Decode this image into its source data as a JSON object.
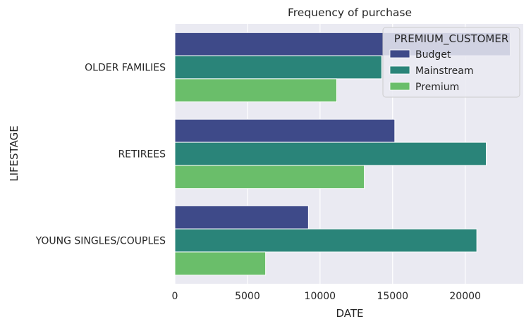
{
  "chart_data": {
    "type": "bar",
    "orientation": "horizontal",
    "title": "Frequency of purchase",
    "xlabel": "DATE",
    "ylabel": "LIFESTAGE",
    "categories": [
      "OLDER FAMILIES",
      "RETIREES",
      "YOUNG SINGLES/COUPLES"
    ],
    "series": [
      {
        "name": "Budget",
        "color": "#3e4a89",
        "values": [
          23100,
          15150,
          9200
        ]
      },
      {
        "name": "Mainstream",
        "color": "#2a8479",
        "values": [
          14250,
          21450,
          20800
        ]
      },
      {
        "name": "Premium",
        "color": "#6abe6a",
        "values": [
          11150,
          13050,
          6250
        ]
      }
    ],
    "xlim": [
      0,
      24000
    ],
    "xticks": [
      0,
      5000,
      10000,
      15000,
      20000
    ],
    "legend": {
      "title": "PREMIUM_CUSTOMER",
      "placement": "top-right"
    },
    "grid": true,
    "style": {
      "plot_background": "#eaeaf2",
      "grid_color": "#ffffff"
    }
  }
}
